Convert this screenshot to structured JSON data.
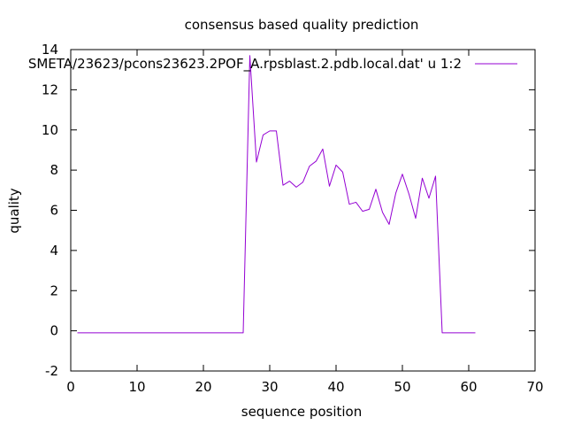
{
  "chart_data": {
    "type": "line",
    "title": "consensus based quality prediction",
    "xlabel": "sequence position",
    "ylabel": "quality",
    "xlim": [
      0,
      70
    ],
    "ylim": [
      -2,
      14
    ],
    "x_ticks": [
      0,
      10,
      20,
      30,
      40,
      50,
      60,
      70
    ],
    "y_ticks": [
      -2,
      0,
      2,
      4,
      6,
      8,
      10,
      12,
      14
    ],
    "grid": false,
    "legend_position": "top-right",
    "series": [
      {
        "name": "SMETA/23623/pcons23623.2POF_A.rpsblast.2.pdb.local.dat' u 1:2",
        "color": "#9400d3",
        "x": [
          1,
          2,
          3,
          4,
          5,
          6,
          7,
          8,
          9,
          10,
          11,
          12,
          13,
          14,
          15,
          16,
          17,
          18,
          19,
          20,
          21,
          22,
          23,
          24,
          25,
          26,
          27,
          28,
          29,
          30,
          31,
          32,
          33,
          34,
          35,
          36,
          37,
          38,
          39,
          40,
          41,
          42,
          43,
          44,
          45,
          46,
          47,
          48,
          49,
          50,
          51,
          52,
          53,
          54,
          55,
          56,
          57,
          58,
          59,
          60,
          61
        ],
        "y": [
          -0.1,
          -0.1,
          -0.1,
          -0.1,
          -0.1,
          -0.1,
          -0.1,
          -0.1,
          -0.1,
          -0.1,
          -0.1,
          -0.1,
          -0.1,
          -0.1,
          -0.1,
          -0.1,
          -0.1,
          -0.1,
          -0.1,
          -0.1,
          -0.1,
          -0.1,
          -0.1,
          -0.1,
          -0.1,
          -0.1,
          13.7,
          8.4,
          9.75,
          9.95,
          9.95,
          7.25,
          7.45,
          7.15,
          7.4,
          8.2,
          8.45,
          9.05,
          7.2,
          8.25,
          7.9,
          6.3,
          6.4,
          5.95,
          6.05,
          7.05,
          5.9,
          5.3,
          6.85,
          7.8,
          6.8,
          5.6,
          7.6,
          6.6,
          7.7,
          -0.1,
          -0.1,
          -0.1,
          -0.1,
          -0.1,
          -0.1
        ]
      }
    ]
  }
}
